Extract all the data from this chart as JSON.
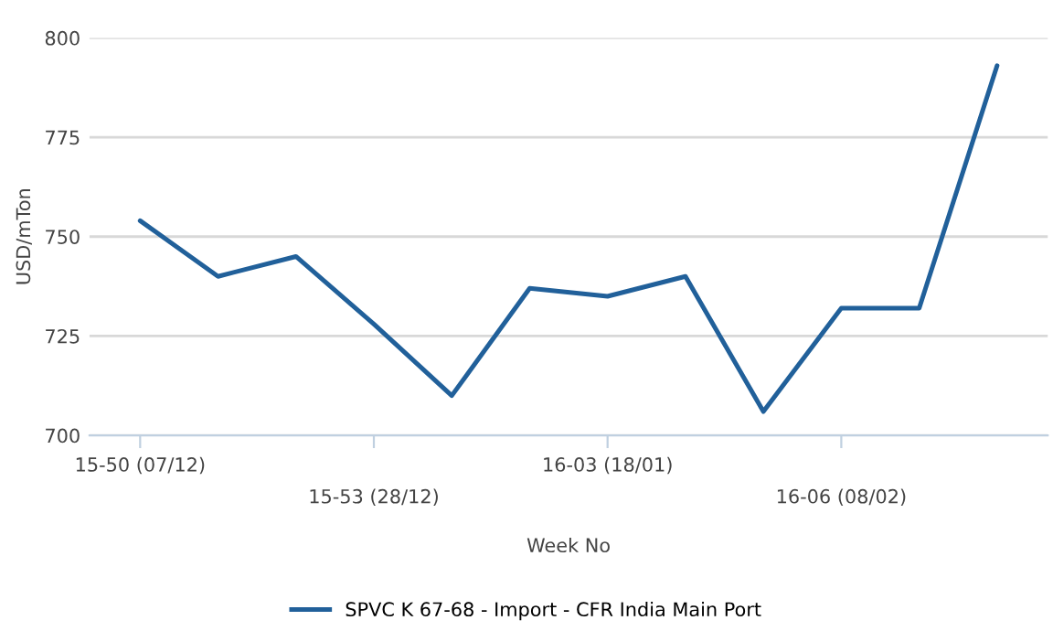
{
  "chart_data": {
    "type": "line",
    "xlabel": "Week No",
    "ylabel": "USD/mTon",
    "categories": [
      "15-50 (07/12)",
      null,
      null,
      "15-53 (28/12)",
      null,
      null,
      "16-03 (18/01)",
      null,
      null,
      "16-06 (08/02)",
      null,
      null
    ],
    "series": [
      {
        "name": "SPVC K 67-68 - Import - CFR India Main Port",
        "color": "#21609a",
        "values": [
          754,
          740,
          745,
          728,
          710,
          737,
          735,
          740,
          706,
          732,
          732,
          793
        ]
      }
    ],
    "ylim": [
      700,
      800
    ],
    "yticks": [
      700,
      725,
      750,
      775,
      800
    ],
    "grid": "y",
    "legend": "bottom",
    "marker": "none",
    "line_style": "solid"
  }
}
